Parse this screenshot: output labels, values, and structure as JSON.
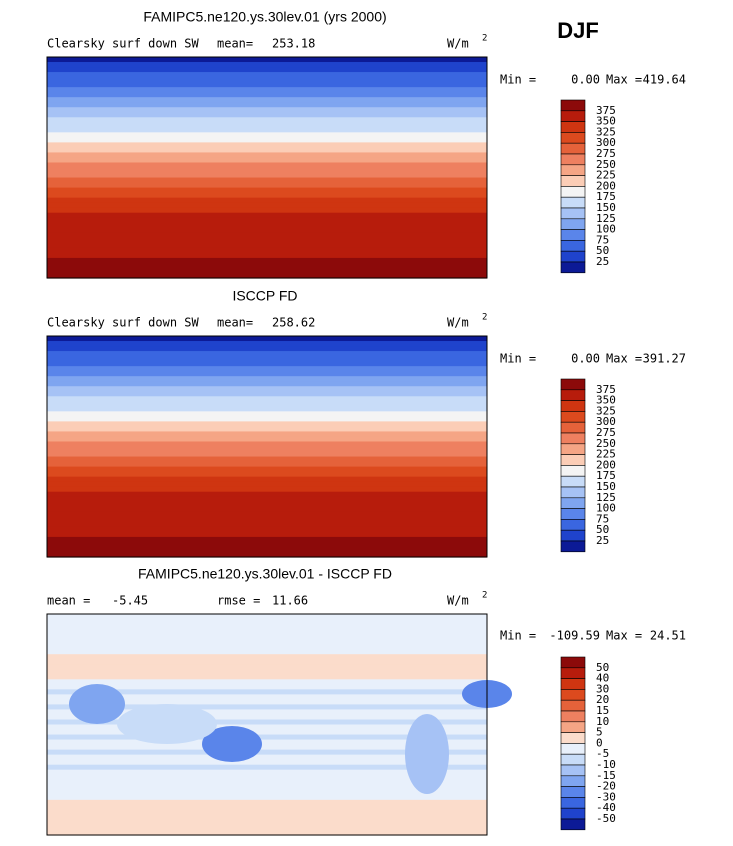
{
  "season": "DJF",
  "panels": [
    {
      "title": "FAMIPC5.ne120.ys.30lev.01 (yrs 2000)",
      "variable": "Clearsky surf down SW",
      "stats": [
        {
          "label": "mean=",
          "value": "253.18"
        }
      ],
      "units": "W/m",
      "units_sup": "2",
      "min_label": "Min =",
      "min": "0.00",
      "max_label": "Max =",
      "max": "419.64",
      "colorbar": {
        "labels": [
          "375",
          "350",
          "325",
          "300",
          "275",
          "250",
          "225",
          "200",
          "175",
          "150",
          "125",
          "100",
          "75",
          "50",
          "25"
        ],
        "colors": [
          "#8c0a0a",
          "#b71c0c",
          "#cf3511",
          "#dc4a1e",
          "#e5623a",
          "#ee8060",
          "#f5a585",
          "#fbcdb6",
          "#f4f4f4",
          "#c8dcf8",
          "#a6c2f5",
          "#7fa5f0",
          "#5a85ea",
          "#3a66e0",
          "#1f43cc",
          "#0c1a96"
        ]
      },
      "map": "absolute"
    },
    {
      "title": "ISCCP FD",
      "variable": "Clearsky surf down SW",
      "stats": [
        {
          "label": "mean=",
          "value": "258.62"
        }
      ],
      "units": "W/m",
      "units_sup": "2",
      "min_label": "Min =",
      "min": "0.00",
      "max_label": "Max =",
      "max": "391.27",
      "colorbar": {
        "labels": [
          "375",
          "350",
          "325",
          "300",
          "275",
          "250",
          "225",
          "200",
          "175",
          "150",
          "125",
          "100",
          "75",
          "50",
          "25"
        ],
        "colors": [
          "#8c0a0a",
          "#b71c0c",
          "#cf3511",
          "#dc4a1e",
          "#e5623a",
          "#ee8060",
          "#f5a585",
          "#fbcdb6",
          "#f4f4f4",
          "#c8dcf8",
          "#a6c2f5",
          "#7fa5f0",
          "#5a85ea",
          "#3a66e0",
          "#1f43cc",
          "#0c1a96"
        ]
      },
      "map": "absolute"
    },
    {
      "title": "FAMIPC5.ne120.ys.30lev.01 - ISCCP FD",
      "variable": null,
      "stats": [
        {
          "label": "mean =",
          "value": "-5.45"
        },
        {
          "label": "rmse =",
          "value": "11.66"
        }
      ],
      "units": "W/m",
      "units_sup": "2",
      "min_label": "Min =",
      "min": "-109.59",
      "max_label": "Max =",
      "max": "24.51",
      "colorbar": {
        "labels": [
          "50",
          "40",
          "30",
          "20",
          "15",
          "10",
          "5",
          "0",
          "-5",
          "-10",
          "-15",
          "-20",
          "-30",
          "-40",
          "-50"
        ],
        "colors": [
          "#8c0a0a",
          "#b71c0c",
          "#cf3511",
          "#dc4a1e",
          "#e5623a",
          "#ee8060",
          "#f5a585",
          "#fbdccb",
          "#e8f0fb",
          "#c8dcf8",
          "#a6c2f5",
          "#7fa5f0",
          "#5a85ea",
          "#3a66e0",
          "#1f43cc",
          "#0c1a96"
        ]
      },
      "map": "difference"
    }
  ]
}
